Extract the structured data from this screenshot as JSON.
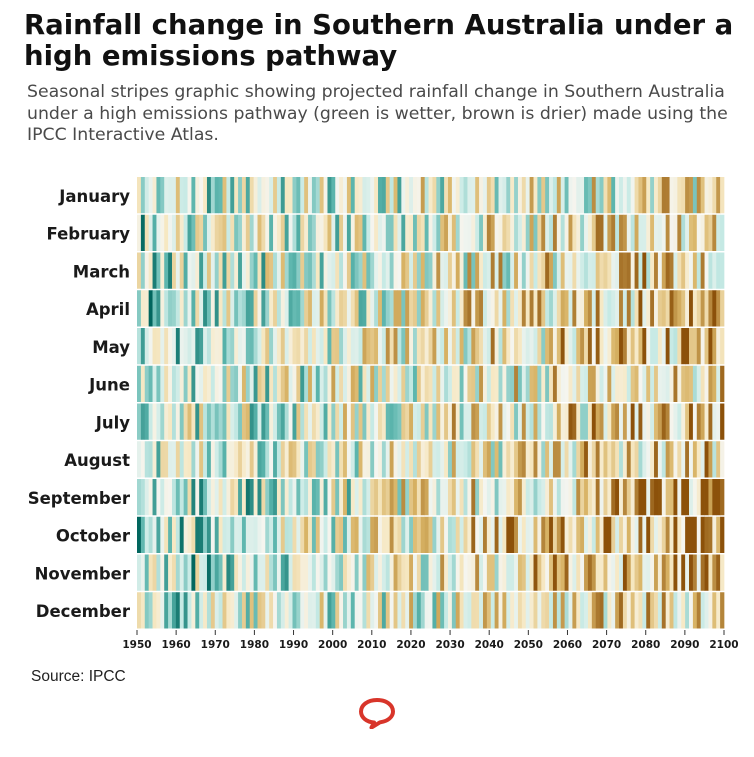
{
  "title": "Rainfall change in Southern Australia under a high emissions pathway",
  "subtitle": "Seasonal stripes graphic showing projected rainfall change in Southern Australia under a high emissions pathway (green is wetter, brown is drier) made using the IPCC Interactive Atlas.",
  "source": "Source: IPCC",
  "logo_icon": "speech-bubble-icon",
  "colors": {
    "wet_strong": "#01665e",
    "wet_mid": "#5ab4ac",
    "wet_light": "#c7eae5",
    "neutral": "#f5f5f0",
    "dry_light": "#f6e8c3",
    "dry_mid": "#d8b365",
    "dry_strong": "#8c510a",
    "logo": "#d8352a"
  },
  "chart_data": {
    "type": "heatmap",
    "title": "Rainfall change in Southern Australia under a high emissions pathway",
    "xlabel": "",
    "ylabel": "",
    "rows": [
      "January",
      "February",
      "March",
      "April",
      "May",
      "June",
      "July",
      "August",
      "September",
      "October",
      "November",
      "December"
    ],
    "x_range": [
      1950,
      2100
    ],
    "x_ticks": [
      "1950",
      "1960",
      "1970",
      "1980",
      "1990",
      "2000",
      "2010",
      "2020",
      "2030",
      "2040",
      "2050",
      "2060",
      "2070",
      "2080",
      "2090",
      "2100"
    ],
    "value_scale": "relative rainfall change, -1 (much drier, brown) to +1 (much wetter, green)",
    "trend_by_month": {
      "January": {
        "start": 0.15,
        "end": -0.15
      },
      "February": {
        "start": 0.25,
        "end": -0.3
      },
      "March": {
        "start": 0.25,
        "end": -0.35
      },
      "April": {
        "start": 0.3,
        "end": -0.5
      },
      "May": {
        "start": 0.25,
        "end": -0.45
      },
      "June": {
        "start": 0.2,
        "end": -0.35
      },
      "July": {
        "start": 0.2,
        "end": -0.4
      },
      "August": {
        "start": 0.25,
        "end": -0.4
      },
      "September": {
        "start": 0.4,
        "end": -0.6
      },
      "October": {
        "start": 0.4,
        "end": -0.7
      },
      "November": {
        "start": 0.35,
        "end": -0.65
      },
      "December": {
        "start": 0.25,
        "end": -0.35
      }
    }
  }
}
